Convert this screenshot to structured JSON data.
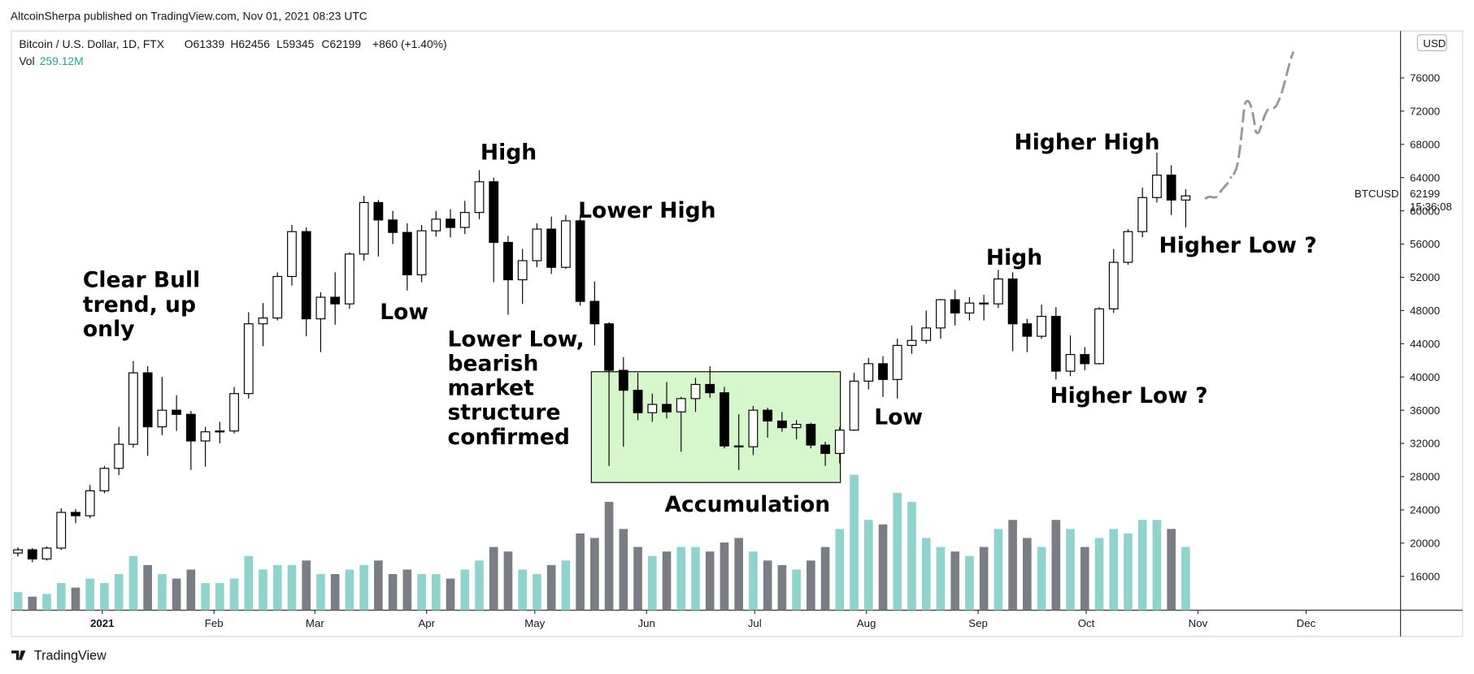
{
  "header": {
    "publisher": "AltcoinSherpa published on TradingView.com, Nov 01, 2021 08:23 UTC",
    "symbol": "Bitcoin / U.S. Dollar, 1D, FTX",
    "ohlc": [
      "O61339",
      "H62456",
      "L59345",
      "C62199",
      "+860 (+1.40%)"
    ],
    "volume_label": "Vol",
    "volume_value": "259.12M"
  },
  "chart_data": {
    "type": "candlestick",
    "open": [
      18800,
      19200,
      18100,
      19400,
      23700,
      23300,
      26300,
      29000,
      31900,
      40500,
      34000,
      36000,
      35500,
      32300,
      33400,
      33500,
      38000,
      46400,
      47100,
      52100,
      57500,
      47000,
      49600,
      48800,
      54800,
      61000,
      58900,
      57400,
      52300,
      57600,
      59000,
      58000,
      59800,
      63500,
      56200,
      51700,
      54000,
      57800,
      53200,
      58800,
      49100,
      46400,
      40800,
      38400,
      35700,
      36700,
      35800,
      37400,
      39100,
      38100,
      31700,
      31600,
      36000,
      34700,
      33900,
      34300,
      31800,
      30800,
      33600,
      39500,
      41600,
      39700,
      43800,
      44400,
      45900,
      49300,
      47700,
      48900,
      48800,
      51800,
      46400,
      44900,
      47300,
      40700,
      42700,
      41600,
      48200,
      53800,
      57500,
      61600,
      64300,
      61300
    ],
    "high": [
      19500,
      19400,
      19600,
      24200,
      24100,
      27000,
      29300,
      34000,
      41900,
      41300,
      40000,
      37800,
      35900,
      34000,
      34600,
      38800,
      47800,
      48900,
      52600,
      58300,
      58000,
      50200,
      52600,
      55000,
      61800,
      61300,
      60000,
      58500,
      58300,
      60000,
      60200,
      61200,
      64900,
      64000,
      57000,
      55400,
      58500,
      59300,
      59500,
      59500,
      51500,
      46600,
      42400,
      40500,
      38000,
      39400,
      37600,
      39900,
      41300,
      38800,
      35500,
      36500,
      36300,
      35800,
      34800,
      34500,
      32200,
      34000,
      40500,
      42300,
      42500,
      44600,
      46200,
      48000,
      49400,
      50500,
      49600,
      49900,
      52900,
      52600,
      47000,
      48700,
      48400,
      45000,
      43600,
      48400,
      55400,
      57800,
      62800,
      67000,
      65500,
      62600
    ],
    "low": [
      18400,
      17700,
      17900,
      19200,
      22400,
      23000,
      26000,
      28200,
      31500,
      30500,
      33000,
      33500,
      28800,
      29200,
      32000,
      33200,
      37400,
      43700,
      46800,
      51000,
      44900,
      43000,
      46300,
      48200,
      54000,
      54500,
      56000,
      50400,
      51400,
      56900,
      56800,
      57200,
      59000,
      51400,
      47500,
      48800,
      53200,
      52400,
      53000,
      48600,
      43800,
      29300,
      31600,
      34800,
      34600,
      35000,
      31000,
      35800,
      37500,
      31400,
      28800,
      30600,
      32700,
      33400,
      32500,
      31400,
      29300,
      29600,
      33500,
      38500,
      37600,
      37400,
      42800,
      44000,
      44600,
      46200,
      46800,
      46800,
      48300,
      43100,
      43000,
      44600,
      39700,
      40100,
      40800,
      41500,
      47700,
      53500,
      56800,
      61000,
      59500,
      58000
    ],
    "close": [
      19200,
      18100,
      19400,
      23700,
      23300,
      26300,
      29000,
      31900,
      40500,
      34000,
      36000,
      35500,
      32300,
      33400,
      33500,
      38000,
      46400,
      47100,
      52100,
      57500,
      47000,
      49600,
      48800,
      54800,
      61000,
      58900,
      57400,
      52300,
      57600,
      59000,
      58000,
      59800,
      63500,
      56200,
      51700,
      54000,
      57800,
      53200,
      58800,
      49100,
      46400,
      40800,
      38400,
      35700,
      36700,
      35800,
      37400,
      39100,
      38100,
      31700,
      31600,
      36000,
      34700,
      33900,
      34300,
      31800,
      30800,
      33600,
      39500,
      41600,
      39700,
      43800,
      44400,
      45900,
      49300,
      47700,
      48900,
      48800,
      51800,
      46400,
      44900,
      47300,
      40700,
      42700,
      41600,
      48200,
      53800,
      57500,
      61600,
      64300,
      61300,
      61800
    ],
    "volume": [
      200,
      150,
      180,
      300,
      250,
      350,
      300,
      400,
      600,
      500,
      400,
      350,
      450,
      300,
      300,
      350,
      600,
      450,
      500,
      500,
      550,
      400,
      400,
      450,
      500,
      550,
      400,
      450,
      400,
      400,
      350,
      450,
      550,
      700,
      650,
      450,
      400,
      500,
      550,
      850,
      800,
      1200,
      900,
      700,
      600,
      650,
      700,
      700,
      650,
      750,
      800,
      650,
      550,
      500,
      450,
      550,
      700,
      900,
      1500,
      1000,
      950,
      1300,
      1200,
      800,
      700,
      650,
      600,
      700,
      900,
      1000,
      800,
      700,
      1000,
      900,
      700,
      800,
      900,
      850,
      1000,
      1000,
      900,
      700
    ],
    "volume_ylim": [
      0,
      2600
    ],
    "ylim": [
      11930,
      81650
    ],
    "yticks": [
      16000,
      20000,
      24000,
      28000,
      32000,
      36000,
      40000,
      44000,
      48000,
      52000,
      56000,
      60000,
      64000,
      68000,
      72000,
      76000
    ],
    "xlim": [
      -0.05,
      96.3
    ],
    "xticks": [
      {
        "value": 6.25,
        "label": "2021"
      },
      {
        "value": 14,
        "label": "Feb"
      },
      {
        "value": 21,
        "label": "Mar"
      },
      {
        "value": 28.75,
        "label": "Apr"
      },
      {
        "value": 36.25,
        "label": "May"
      },
      {
        "value": 44,
        "label": "Jun"
      },
      {
        "value": 51.5,
        "label": "Jul"
      },
      {
        "value": 59.25,
        "label": "Aug"
      },
      {
        "value": 67,
        "label": "Sep"
      },
      {
        "value": 74.5,
        "label": "Oct"
      },
      {
        "value": 82.25,
        "label": "Nov"
      },
      {
        "value": 89.75,
        "label": "Dec"
      }
    ],
    "up_color": "#ffffff",
    "down_color": "#000000",
    "volume_up_color": "#8fd4cc",
    "volume_down_color": "#7b7d84",
    "currency": "USD",
    "price_label": {
      "symbol": "BTCUSD",
      "value": "62199",
      "countdown": "15:36:08"
    },
    "annotations": [
      {
        "lines": [
          "Clear Bull",
          "trend, up",
          "only"
        ]
      },
      {
        "lines": [
          "Low"
        ]
      },
      {
        "lines": [
          "High"
        ]
      },
      {
        "lines": [
          "Lower High"
        ]
      },
      {
        "lines": [
          "Lower Low,",
          "bearish",
          "market",
          "structure",
          "confirmed"
        ]
      },
      {
        "lines": [
          "Accumulation"
        ]
      },
      {
        "lines": [
          "Low"
        ]
      },
      {
        "lines": [
          "High"
        ]
      },
      {
        "lines": [
          "Higher High"
        ]
      },
      {
        "lines": [
          "Higher Low ?"
        ]
      },
      {
        "lines": [
          "Higher Low ?"
        ]
      }
    ]
  },
  "footer": {
    "brand": "TradingView"
  }
}
